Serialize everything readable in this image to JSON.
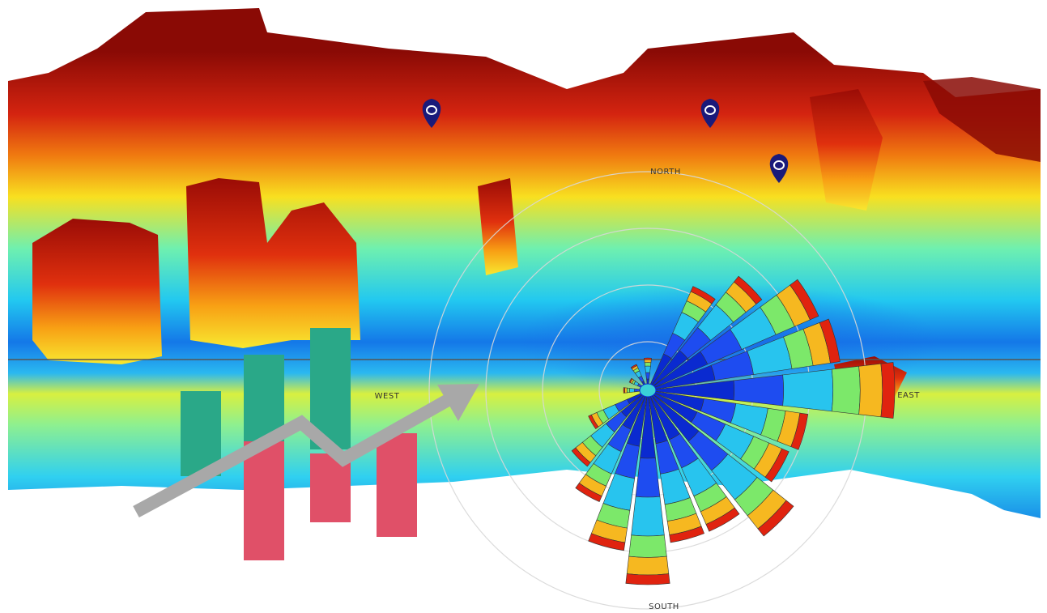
{
  "compass": {
    "north": "NORTH",
    "west": "WEST",
    "east": "EAST",
    "south": "SOUTH"
  }
}
